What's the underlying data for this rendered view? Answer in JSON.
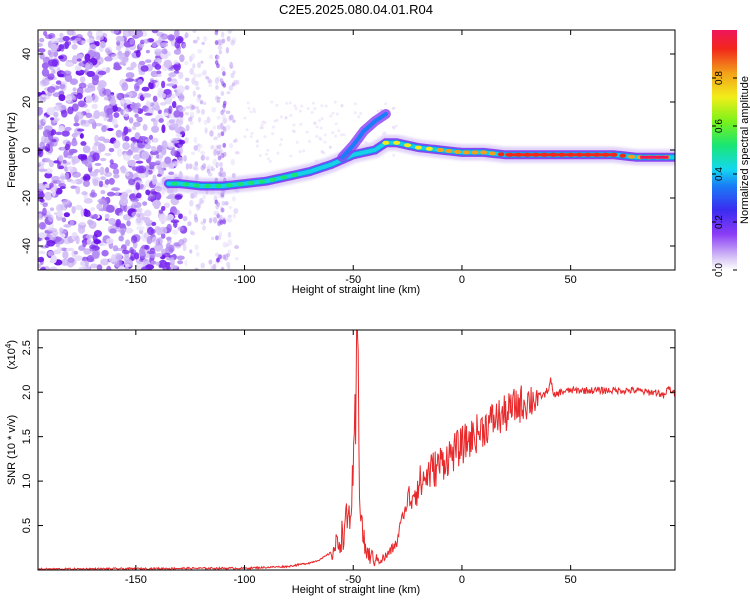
{
  "title": "C2E5.2025.080.04.01.R04",
  "chart_data": [
    {
      "type": "heatmap",
      "xlabel": "Height of straight line (km)",
      "ylabel": "Frequency (Hz)",
      "xlim": [
        -195,
        98
      ],
      "ylim": [
        -50,
        50
      ],
      "xticks": [
        -150,
        -100,
        -50,
        0,
        50
      ],
      "yticks": [
        -40,
        -20,
        0,
        20,
        40
      ],
      "ridge": {
        "x": [
          -135,
          -130,
          -120,
          -110,
          -100,
          -90,
          -80,
          -70,
          -60,
          -55,
          -50,
          -45,
          -40,
          -35,
          -30,
          -25,
          -20,
          -10,
          0,
          10,
          20,
          30,
          40,
          50,
          60,
          70,
          80,
          90,
          98
        ],
        "y": [
          -14,
          -14,
          -15,
          -15,
          -14,
          -13,
          -11,
          -9,
          -6,
          -4,
          -2,
          -1,
          0,
          3,
          3,
          2,
          1,
          0,
          -1,
          -1,
          -2,
          -2,
          -2,
          -2,
          -2,
          -2,
          -3,
          -3,
          -3
        ]
      },
      "branch": {
        "x": [
          -55,
          -50,
          -45,
          -40,
          -35
        ],
        "y": [
          -3,
          2,
          8,
          12,
          15
        ]
      },
      "colorbar": {
        "label": "Normalized spectral amplitude",
        "range": [
          0,
          1
        ],
        "ticks": [
          0.0,
          0.2,
          0.4,
          0.6,
          0.8
        ]
      }
    },
    {
      "type": "line",
      "xlabel": "Height of straight line (km)",
      "ylabel": "SNR (10 * v/v)",
      "scale_label": "(x10",
      "scale_exp": "4",
      "xlim": [
        -195,
        98
      ],
      "ylim": [
        0,
        2.7
      ],
      "xticks": [
        -150,
        -100,
        -50,
        0,
        50
      ],
      "yticks": [
        0.5,
        1.0,
        1.5,
        2.0,
        2.5
      ],
      "tick_labels": [
        "0.5",
        "1.0",
        "1.5",
        "2.0",
        "2.5"
      ],
      "series": [
        {
          "color": "#e8282a",
          "x": [
            -195,
            -150,
            -120,
            -100,
            -90,
            -80,
            -75,
            -70,
            -65,
            -60,
            -57,
            -55,
            -52,
            -50,
            -49,
            -48,
            -47,
            -46,
            -45,
            -44,
            -42,
            -40,
            -37,
            -35,
            -30,
            -28,
            -25,
            -22,
            -20,
            -18,
            -15,
            -12,
            -10,
            -5,
            0,
            5,
            10,
            15,
            20,
            25,
            30,
            35,
            38,
            40,
            41,
            42,
            45,
            50,
            60,
            70,
            80,
            85,
            90,
            93,
            95,
            98
          ],
          "y": [
            0.01,
            0.015,
            0.02,
            0.02,
            0.03,
            0.04,
            0.06,
            0.08,
            0.12,
            0.2,
            0.3,
            0.4,
            0.6,
            0.9,
            1.6,
            2.6,
            1.0,
            0.5,
            0.3,
            0.2,
            0.15,
            0.12,
            0.12,
            0.15,
            0.3,
            0.55,
            0.75,
            0.9,
            0.95,
            1.0,
            1.1,
            1.15,
            1.2,
            1.3,
            1.4,
            1.5,
            1.6,
            1.7,
            1.75,
            1.85,
            1.9,
            1.95,
            1.97,
            2.05,
            2.15,
            1.95,
            2.0,
            2.02,
            2.02,
            2.02,
            2.02,
            2.0,
            2.0,
            1.95,
            2.05,
            1.97
          ]
        }
      ]
    }
  ]
}
